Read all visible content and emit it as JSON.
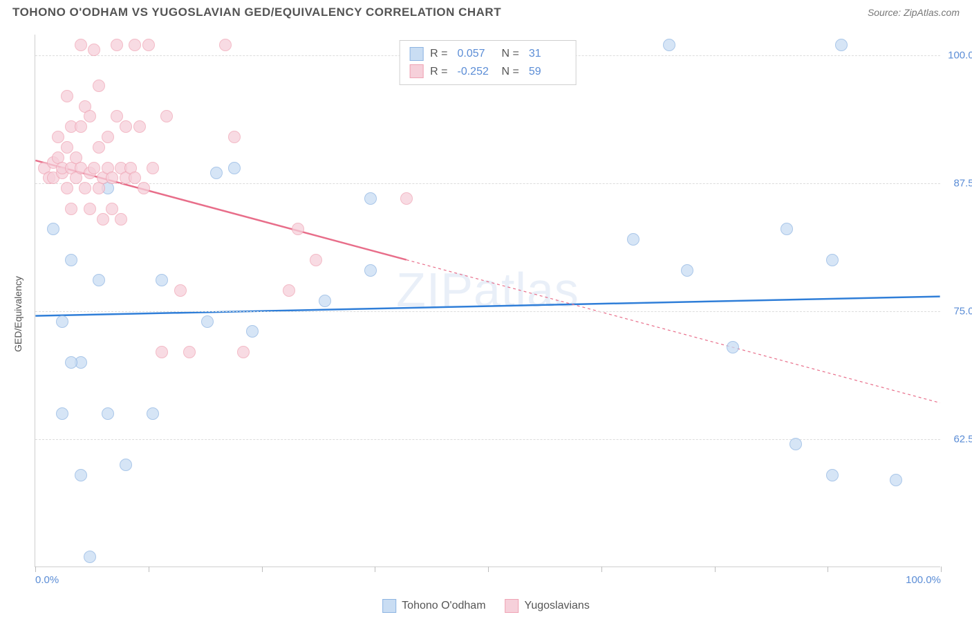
{
  "header": {
    "title": "TOHONO O'ODHAM VS YUGOSLAVIAN GED/EQUIVALENCY CORRELATION CHART",
    "source": "Source: ZipAtlas.com"
  },
  "chart": {
    "type": "scatter",
    "ylabel": "GED/Equivalency",
    "watermark": "ZIPatlas",
    "xlim": [
      0,
      100
    ],
    "ylim": [
      50,
      102
    ],
    "xtick_positions": [
      0,
      12.5,
      25,
      37.5,
      50,
      62.5,
      75,
      87.5,
      100
    ],
    "xtick_labels_visible": {
      "0": "0.0%",
      "100": "100.0%"
    },
    "ytick_positions": [
      62.5,
      75.0,
      87.5,
      100.0
    ],
    "ytick_labels": [
      "62.5%",
      "75.0%",
      "87.5%",
      "100.0%"
    ],
    "background_color": "#ffffff",
    "grid_color": "#dcdcdc",
    "point_radius": 9,
    "series": [
      {
        "name": "Tohono O'odham",
        "fill_color": "#c9ddf3",
        "stroke_color": "#8db4e2",
        "trend_color": "#2f7ed8",
        "trend_width": 2.5,
        "trend_dash_after_x": 100,
        "R": "0.057",
        "N": "31",
        "trend": {
          "x1": 0,
          "y1": 74.5,
          "x2": 100,
          "y2": 76.4
        },
        "points": [
          [
            2,
            83
          ],
          [
            4,
            80
          ],
          [
            3,
            74
          ],
          [
            5,
            70
          ],
          [
            4,
            70
          ],
          [
            7,
            78
          ],
          [
            5,
            59
          ],
          [
            3,
            65
          ],
          [
            6,
            51
          ],
          [
            8,
            65
          ],
          [
            10,
            60
          ],
          [
            13,
            65
          ],
          [
            14,
            78
          ],
          [
            8,
            87
          ],
          [
            20,
            88.5
          ],
          [
            19,
            74
          ],
          [
            22,
            89
          ],
          [
            24,
            73
          ],
          [
            32,
            76
          ],
          [
            37,
            79
          ],
          [
            37,
            86
          ],
          [
            66,
            82
          ],
          [
            72,
            79
          ],
          [
            70,
            101
          ],
          [
            77,
            71.5
          ],
          [
            83,
            83
          ],
          [
            84,
            62
          ],
          [
            88,
            80
          ],
          [
            88,
            59
          ],
          [
            95,
            58.5
          ],
          [
            89,
            101
          ]
        ]
      },
      {
        "name": "Yugoslavians",
        "fill_color": "#f6d0da",
        "stroke_color": "#efa3b4",
        "trend_color": "#e86e8a",
        "trend_width": 2.5,
        "trend_dash_after_x": 41,
        "R": "-0.252",
        "N": "59",
        "trend": {
          "x1": 0,
          "y1": 89.7,
          "x2": 100,
          "y2": 66
        },
        "points": [
          [
            1,
            89
          ],
          [
            1.5,
            88
          ],
          [
            2,
            89.5
          ],
          [
            2,
            88
          ],
          [
            2.5,
            92
          ],
          [
            2.5,
            90
          ],
          [
            3,
            88.5
          ],
          [
            3,
            89
          ],
          [
            3.5,
            96
          ],
          [
            3.5,
            91
          ],
          [
            3.5,
            87
          ],
          [
            4,
            89
          ],
          [
            4,
            93
          ],
          [
            4,
            85
          ],
          [
            4.5,
            90
          ],
          [
            4.5,
            88
          ],
          [
            5,
            101
          ],
          [
            5,
            93
          ],
          [
            5,
            89
          ],
          [
            5.5,
            87
          ],
          [
            5.5,
            95
          ],
          [
            6,
            94
          ],
          [
            6,
            88.5
          ],
          [
            6,
            85
          ],
          [
            6.5,
            89
          ],
          [
            6.5,
            100.5
          ],
          [
            7,
            97
          ],
          [
            7,
            91
          ],
          [
            7,
            87
          ],
          [
            7.5,
            88
          ],
          [
            7.5,
            84
          ],
          [
            8,
            92
          ],
          [
            8,
            89
          ],
          [
            8.5,
            88
          ],
          [
            8.5,
            85
          ],
          [
            9,
            101
          ],
          [
            9,
            94
          ],
          [
            9.5,
            89
          ],
          [
            9.5,
            84
          ],
          [
            10,
            93
          ],
          [
            10,
            88
          ],
          [
            10.5,
            89
          ],
          [
            11,
            101
          ],
          [
            11,
            88
          ],
          [
            11.5,
            93
          ],
          [
            12,
            87
          ],
          [
            12.5,
            101
          ],
          [
            13,
            89
          ],
          [
            14,
            71
          ],
          [
            14.5,
            94
          ],
          [
            16,
            77
          ],
          [
            17,
            71
          ],
          [
            21,
            101
          ],
          [
            22,
            92
          ],
          [
            23,
            71
          ],
          [
            28,
            77
          ],
          [
            29,
            83
          ],
          [
            31,
            80
          ],
          [
            41,
            86
          ]
        ]
      }
    ],
    "legend_bottom": [
      {
        "label": "Tohono O'odham",
        "fill": "#c9ddf3",
        "stroke": "#8db4e2"
      },
      {
        "label": "Yugoslavians",
        "fill": "#f6d0da",
        "stroke": "#efa3b4"
      }
    ]
  }
}
